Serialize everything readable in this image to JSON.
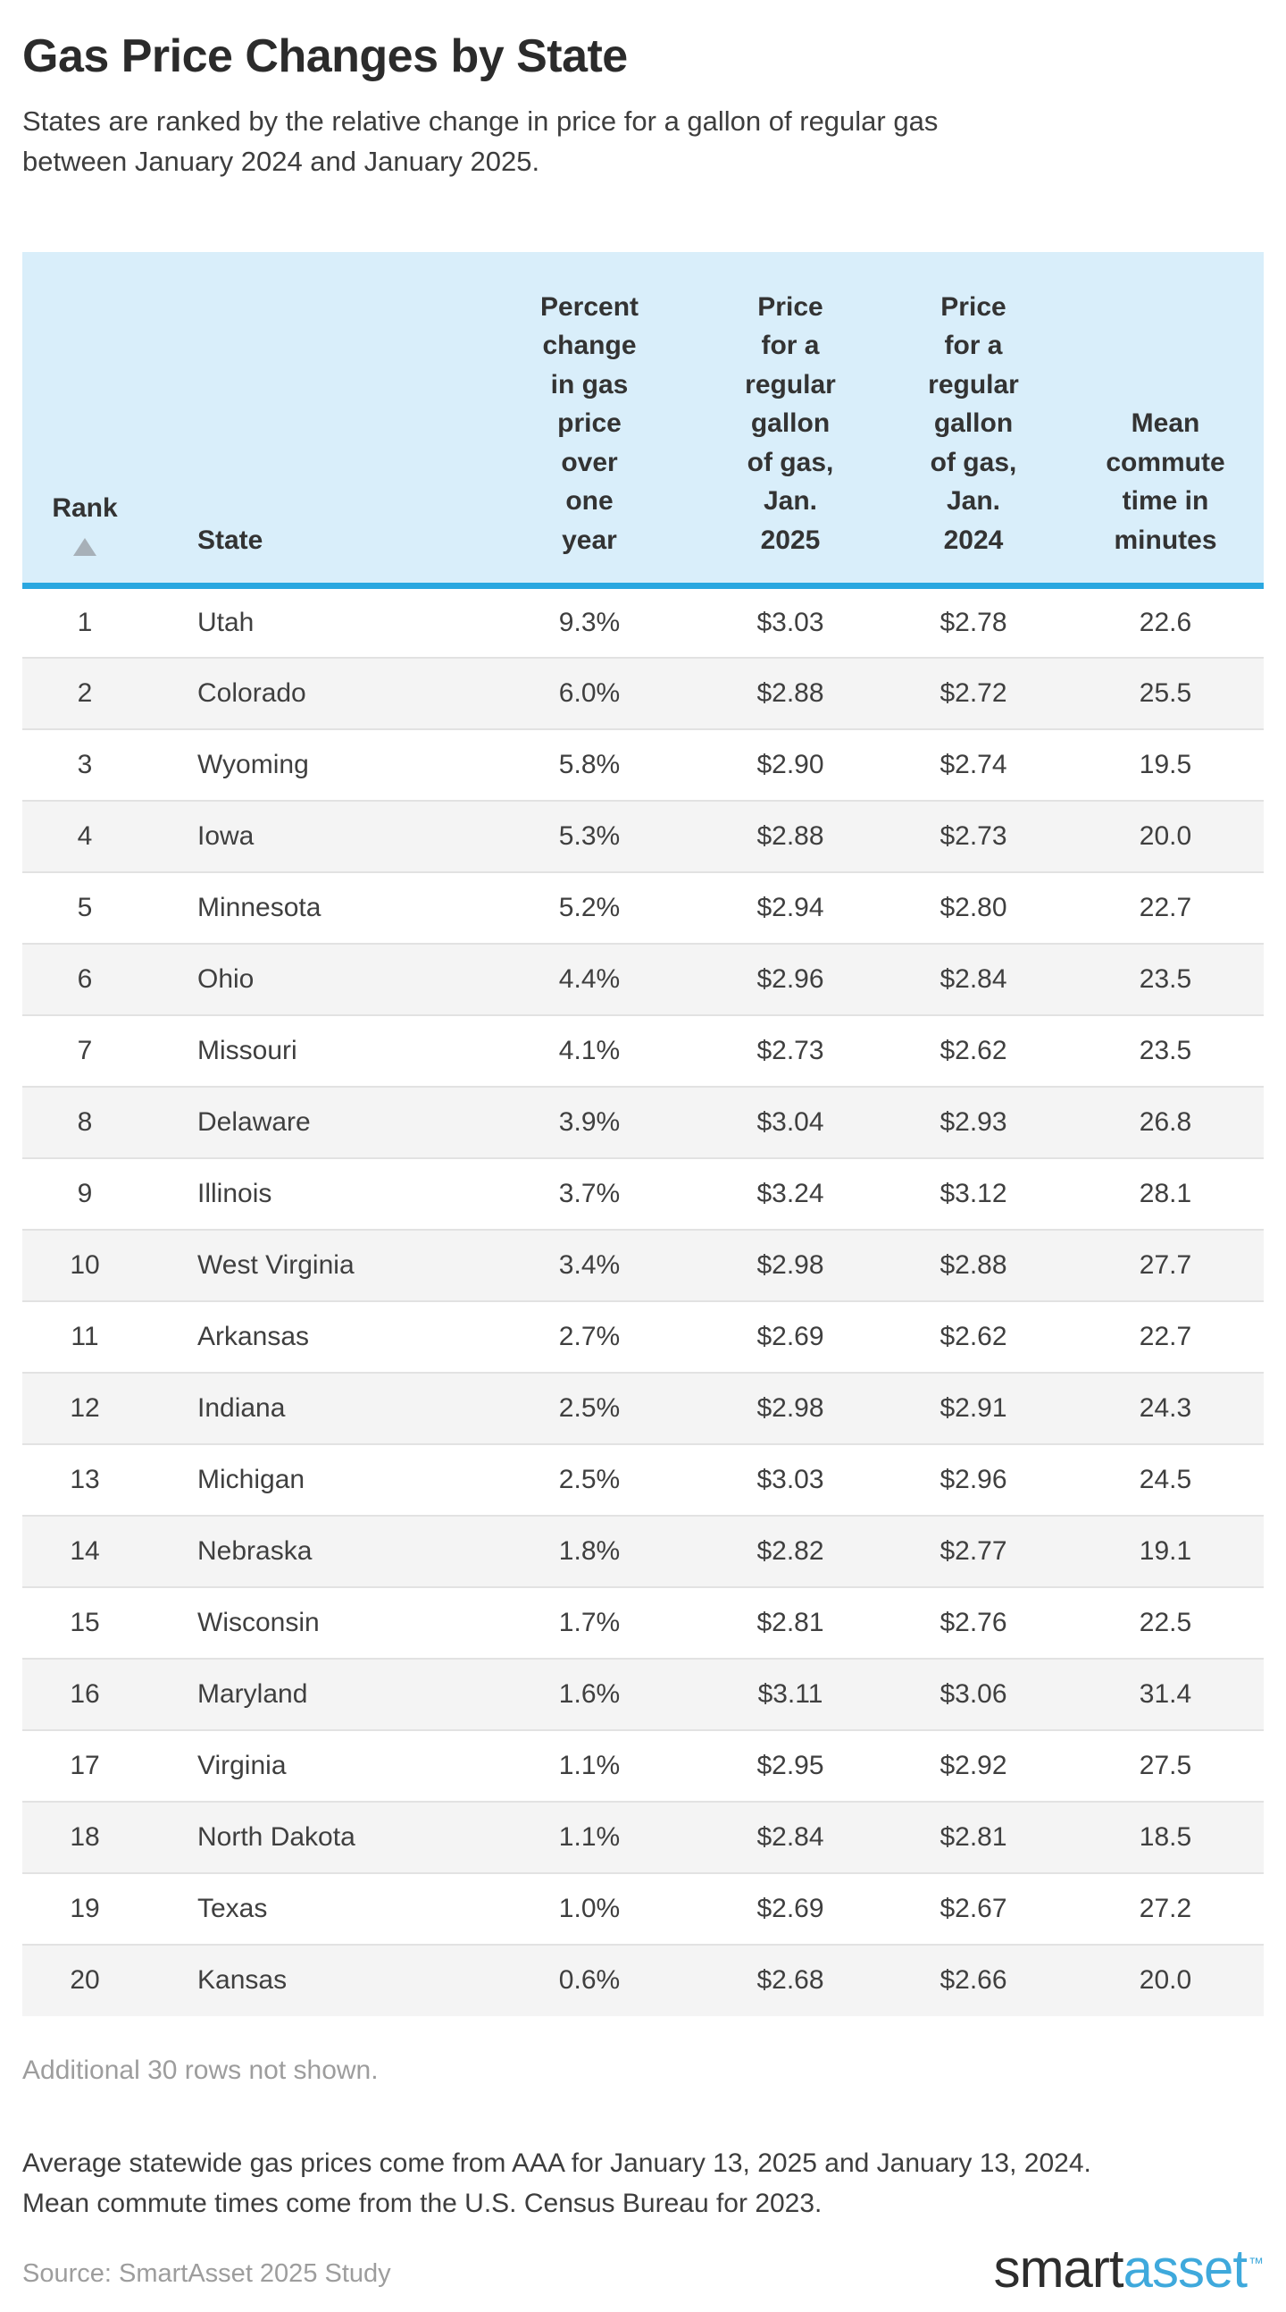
{
  "header": {
    "title": "Gas Price Changes by State",
    "subtitle": "States are ranked by the relative change in price for a gallon of regular gas\nbetween January 2024 and January 2025."
  },
  "table": {
    "header": {
      "rank": "Rank",
      "sort_indicator": "ascending",
      "state": "State",
      "pct_change": "Percent\nchange\nin gas\nprice\nover\none\nyear",
      "price_2025": "Price\nfor a\nregular\ngallon\nof gas,\nJan.\n2025",
      "price_2024": "Price\nfor a\nregular\ngallon\nof gas,\nJan.\n2024",
      "commute": "Mean\ncommute\ntime in\nminutes"
    }
  },
  "chart_data": {
    "type": "table",
    "title": "Gas Price Changes by State",
    "columns": [
      "Rank",
      "State",
      "Percent change in gas price over one year",
      "Price for a regular gallon of gas, Jan. 2025",
      "Price for a regular gallon of gas, Jan. 2024",
      "Mean commute time in minutes"
    ],
    "sort": "Rank ascending",
    "rows": [
      [
        "1",
        "Utah",
        "9.3%",
        "$3.03",
        "$2.78",
        "22.6"
      ],
      [
        "2",
        "Colorado",
        "6.0%",
        "$2.88",
        "$2.72",
        "25.5"
      ],
      [
        "3",
        "Wyoming",
        "5.8%",
        "$2.90",
        "$2.74",
        "19.5"
      ],
      [
        "4",
        "Iowa",
        "5.3%",
        "$2.88",
        "$2.73",
        "20.0"
      ],
      [
        "5",
        "Minnesota",
        "5.2%",
        "$2.94",
        "$2.80",
        "22.7"
      ],
      [
        "6",
        "Ohio",
        "4.4%",
        "$2.96",
        "$2.84",
        "23.5"
      ],
      [
        "7",
        "Missouri",
        "4.1%",
        "$2.73",
        "$2.62",
        "23.5"
      ],
      [
        "8",
        "Delaware",
        "3.9%",
        "$3.04",
        "$2.93",
        "26.8"
      ],
      [
        "9",
        "Illinois",
        "3.7%",
        "$3.24",
        "$3.12",
        "28.1"
      ],
      [
        "10",
        "West Virginia",
        "3.4%",
        "$2.98",
        "$2.88",
        "27.7"
      ],
      [
        "11",
        "Arkansas",
        "2.7%",
        "$2.69",
        "$2.62",
        "22.7"
      ],
      [
        "12",
        "Indiana",
        "2.5%",
        "$2.98",
        "$2.91",
        "24.3"
      ],
      [
        "13",
        "Michigan",
        "2.5%",
        "$3.03",
        "$2.96",
        "24.5"
      ],
      [
        "14",
        "Nebraska",
        "1.8%",
        "$2.82",
        "$2.77",
        "19.1"
      ],
      [
        "15",
        "Wisconsin",
        "1.7%",
        "$2.81",
        "$2.76",
        "22.5"
      ],
      [
        "16",
        "Maryland",
        "1.6%",
        "$3.11",
        "$3.06",
        "31.4"
      ],
      [
        "17",
        "Virginia",
        "1.1%",
        "$2.95",
        "$2.92",
        "27.5"
      ],
      [
        "18",
        "North Dakota",
        "1.1%",
        "$2.84",
        "$2.81",
        "18.5"
      ],
      [
        "19",
        "Texas",
        "1.0%",
        "$2.69",
        "$2.67",
        "27.2"
      ],
      [
        "20",
        "Kansas",
        "0.6%",
        "$2.68",
        "$2.66",
        "20.0"
      ]
    ]
  },
  "footer": {
    "additional_note": "Additional 30 rows not shown.",
    "notes": "Average statewide gas prices come from AAA for January 13, 2025 and January 13, 2024.\nMean commute times come from the U.S. Census Bureau for 2023.",
    "source": "Source: SmartAsset 2025 Study",
    "logo": {
      "part1": "smart",
      "part2": "asset",
      "tm": "™"
    }
  },
  "colors": {
    "header_background": "#d9eefa",
    "header_accent_border": "#2aa7e0",
    "row_stripe": "#f4f4f4",
    "row_separator": "#e2e2e2",
    "muted_text": "#9d9d9d",
    "logo_blue": "#3fa9dc"
  }
}
